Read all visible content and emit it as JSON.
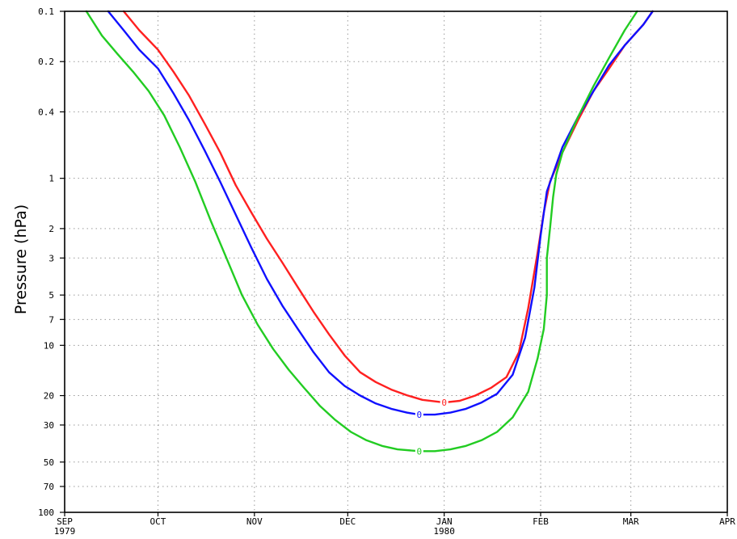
{
  "chart_data": {
    "type": "line",
    "title": "",
    "xlabel": "",
    "ylabel": "Pressure (hPa)",
    "y_scale": "log",
    "y_reversed": true,
    "xlim": [
      "1979-09-01",
      "1980-04-01"
    ],
    "ylim": [
      100,
      0.1
    ],
    "grid": true,
    "grid_style": "dotted",
    "x_ticks": [
      {
        "date": "1979-09-01",
        "label": "SEP",
        "sublabel": "1979"
      },
      {
        "date": "1979-10-01",
        "label": "OCT",
        "sublabel": ""
      },
      {
        "date": "1979-11-01",
        "label": "NOV",
        "sublabel": ""
      },
      {
        "date": "1979-12-01",
        "label": "DEC",
        "sublabel": ""
      },
      {
        "date": "1980-01-01",
        "label": "JAN",
        "sublabel": "1980"
      },
      {
        "date": "1980-02-01",
        "label": "FEB",
        "sublabel": ""
      },
      {
        "date": "1980-03-01",
        "label": "MAR",
        "sublabel": ""
      },
      {
        "date": "1980-04-01",
        "label": "APR",
        "sublabel": ""
      }
    ],
    "y_ticks": [
      {
        "value": 0.1,
        "label": "0.1"
      },
      {
        "value": 0.2,
        "label": "0.2"
      },
      {
        "value": 0.4,
        "label": "0.4"
      },
      {
        "value": 1,
        "label": "1"
      },
      {
        "value": 2,
        "label": "2"
      },
      {
        "value": 3,
        "label": "3"
      },
      {
        "value": 5,
        "label": "5"
      },
      {
        "value": 7,
        "label": "7"
      },
      {
        "value": 10,
        "label": "10"
      },
      {
        "value": 20,
        "label": "20"
      },
      {
        "value": 30,
        "label": "30"
      },
      {
        "value": 50,
        "label": "50"
      },
      {
        "value": 70,
        "label": "70"
      },
      {
        "value": 100,
        "label": "100"
      }
    ],
    "series": [
      {
        "color": "#ff2020",
        "contour_label": "0",
        "label_at": {
          "x": "1980-01-01",
          "y": 22
        },
        "points": [
          [
            "1979-09-20",
            0.1
          ],
          [
            "1979-09-25",
            0.13
          ],
          [
            "1979-10-01",
            0.17
          ],
          [
            "1979-10-06",
            0.23
          ],
          [
            "1979-10-11",
            0.32
          ],
          [
            "1979-10-16",
            0.47
          ],
          [
            "1979-10-21",
            0.7
          ],
          [
            "1979-10-26",
            1.1
          ],
          [
            "1979-10-31",
            1.6
          ],
          [
            "1979-11-05",
            2.3
          ],
          [
            "1979-11-10",
            3.2
          ],
          [
            "1979-11-15",
            4.5
          ],
          [
            "1979-11-20",
            6.3
          ],
          [
            "1979-11-25",
            8.6
          ],
          [
            "1979-11-30",
            11.5
          ],
          [
            "1979-12-05",
            14.5
          ],
          [
            "1979-12-10",
            16.6
          ],
          [
            "1979-12-15",
            18.4
          ],
          [
            "1979-12-20",
            19.9
          ],
          [
            "1979-12-25",
            21.2
          ],
          [
            "1980-01-01",
            22
          ],
          [
            "1980-01-06",
            21.5
          ],
          [
            "1980-01-11",
            20
          ],
          [
            "1980-01-16",
            18
          ],
          [
            "1980-01-21",
            15.5
          ],
          [
            "1980-01-25",
            11
          ],
          [
            "1980-01-28",
            6
          ],
          [
            "1980-01-31",
            2.8
          ],
          [
            "1980-02-02",
            1.6
          ],
          [
            "1980-02-04",
            1.05
          ],
          [
            "1980-02-08",
            0.7
          ],
          [
            "1980-02-13",
            0.45
          ],
          [
            "1980-02-18",
            0.3
          ],
          [
            "1980-02-23",
            0.22
          ],
          [
            "1980-02-28",
            0.16
          ],
          [
            "1980-03-05",
            0.12
          ],
          [
            "1980-03-08",
            0.1
          ]
        ]
      },
      {
        "color": "#1010ff",
        "contour_label": "0",
        "label_at": {
          "x": "1979-12-24",
          "y": 26
        },
        "points": [
          [
            "1979-09-15",
            0.1
          ],
          [
            "1979-09-20",
            0.13
          ],
          [
            "1979-09-25",
            0.17
          ],
          [
            "1979-10-01",
            0.22
          ],
          [
            "1979-10-06",
            0.31
          ],
          [
            "1979-10-11",
            0.45
          ],
          [
            "1979-10-16",
            0.68
          ],
          [
            "1979-10-21",
            1.05
          ],
          [
            "1979-10-26",
            1.65
          ],
          [
            "1979-10-31",
            2.6
          ],
          [
            "1979-11-05",
            4
          ],
          [
            "1979-11-10",
            5.8
          ],
          [
            "1979-11-15",
            8
          ],
          [
            "1979-11-20",
            11
          ],
          [
            "1979-11-25",
            14.5
          ],
          [
            "1979-11-30",
            17.5
          ],
          [
            "1979-12-05",
            20
          ],
          [
            "1979-12-10",
            22.3
          ],
          [
            "1979-12-15",
            24
          ],
          [
            "1979-12-20",
            25.3
          ],
          [
            "1979-12-24",
            26
          ],
          [
            "1979-12-29",
            26
          ],
          [
            "1980-01-03",
            25.3
          ],
          [
            "1980-01-08",
            24
          ],
          [
            "1980-01-13",
            22
          ],
          [
            "1980-01-18",
            19.5
          ],
          [
            "1980-01-23",
            15
          ],
          [
            "1980-01-27",
            9
          ],
          [
            "1980-01-30",
            4.5
          ],
          [
            "1980-02-01",
            2.2
          ],
          [
            "1980-02-03",
            1.2
          ],
          [
            "1980-02-08",
            0.65
          ],
          [
            "1980-02-13",
            0.43
          ],
          [
            "1980-02-18",
            0.3
          ],
          [
            "1980-02-23",
            0.21
          ],
          [
            "1980-02-28",
            0.16
          ],
          [
            "1980-03-05",
            0.12
          ],
          [
            "1980-03-08",
            0.1
          ]
        ]
      },
      {
        "color": "#22cc22",
        "contour_label": "0",
        "label_at": {
          "x": "1979-12-24",
          "y": 43
        },
        "points": [
          [
            "1979-09-08",
            0.1
          ],
          [
            "1979-09-13",
            0.14
          ],
          [
            "1979-09-18",
            0.18
          ],
          [
            "1979-09-23",
            0.23
          ],
          [
            "1979-09-28",
            0.3
          ],
          [
            "1979-10-03",
            0.42
          ],
          [
            "1979-10-08",
            0.65
          ],
          [
            "1979-10-13",
            1.05
          ],
          [
            "1979-10-18",
            1.8
          ],
          [
            "1979-10-23",
            3
          ],
          [
            "1979-10-28",
            5
          ],
          [
            "1979-11-02",
            7.5
          ],
          [
            "1979-11-07",
            10.5
          ],
          [
            "1979-11-12",
            14
          ],
          [
            "1979-11-17",
            18
          ],
          [
            "1979-11-22",
            23
          ],
          [
            "1979-11-27",
            28
          ],
          [
            "1979-12-02",
            33
          ],
          [
            "1979-12-07",
            37
          ],
          [
            "1979-12-12",
            40
          ],
          [
            "1979-12-17",
            42
          ],
          [
            "1979-12-24",
            43
          ],
          [
            "1979-12-29",
            43
          ],
          [
            "1980-01-03",
            42
          ],
          [
            "1980-01-08",
            40
          ],
          [
            "1980-01-13",
            37
          ],
          [
            "1980-01-18",
            33
          ],
          [
            "1980-01-23",
            27
          ],
          [
            "1980-01-28",
            19
          ],
          [
            "1980-01-31",
            12
          ],
          [
            "1980-02-02",
            8
          ],
          [
            "1980-02-03",
            5
          ],
          [
            "1980-02-03",
            3
          ],
          [
            "1980-02-04",
            2
          ],
          [
            "1980-02-05",
            1.3
          ],
          [
            "1980-02-06",
            0.95
          ],
          [
            "1980-02-08",
            0.7
          ],
          [
            "1980-02-13",
            0.43
          ],
          [
            "1980-02-18",
            0.28
          ],
          [
            "1980-02-23",
            0.19
          ],
          [
            "1980-02-28",
            0.13
          ],
          [
            "1980-03-03",
            0.1
          ]
        ]
      }
    ]
  }
}
